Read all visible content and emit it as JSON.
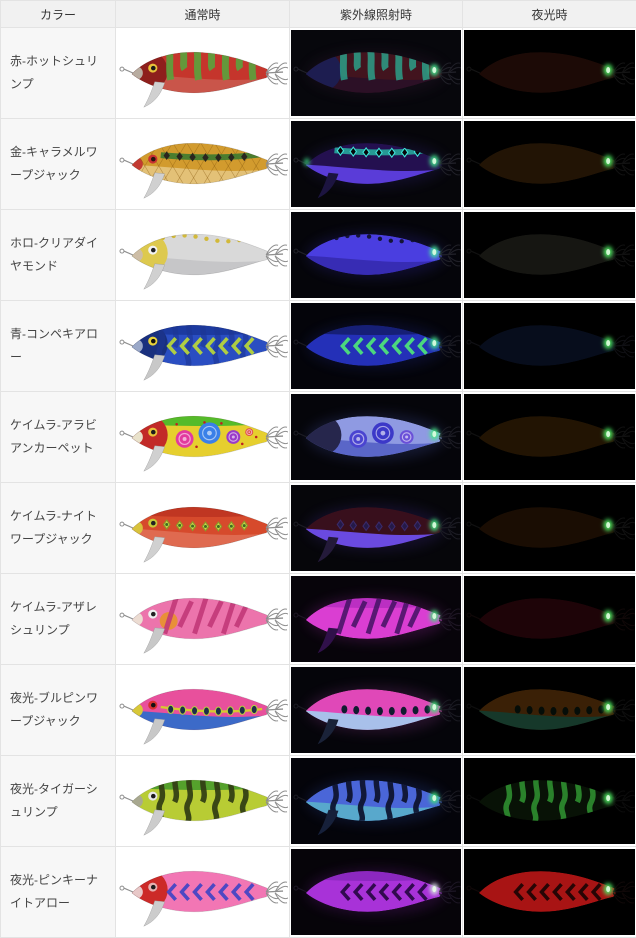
{
  "palette": {
    "header_bg": "#f1f1f1",
    "label_bg": "#f7f7f7",
    "border": "#e3e3e3",
    "photo_bg_dark": "#000000",
    "glow_green": "#4ce25f"
  },
  "table": {
    "headers": [
      {
        "label": "カラー"
      },
      {
        "label": "通常時"
      },
      {
        "label": "紫外線照射時"
      },
      {
        "label": "夜光時"
      }
    ],
    "rows": [
      {
        "label": "赤-ホットシュリンプ",
        "normal": {
          "bg": "#ffffff",
          "body": "#c5352c",
          "belly": "#c9554a",
          "head": "#8e1f1c",
          "noseTip": "#b8aca0",
          "eye": {
            "ring": "#e8c23a",
            "pupil": "#1a1a1a"
          },
          "fin": "#d0d0d0",
          "finStroke": "#9a9a9a",
          "hw": "#8f8f8f",
          "pattern": {
            "type": "stripes",
            "color": "#5f9e3c"
          }
        },
        "uv": {
          "bg": "#07070c",
          "body": "#42141e",
          "belly": "#2c1026",
          "head": "#1d1d50",
          "hw": "#202028",
          "halo": "#402040",
          "pattern": {
            "type": "stripes",
            "color": "#2aa78f",
            "o": 0.8
          },
          "spot": "#3fe08a"
        },
        "night": {
          "bg": "#000000",
          "body": "#1c0a06",
          "hw": "#141414",
          "spot": "#4ce25f"
        }
      },
      {
        "label": "金-キャラメルワープジャック",
        "normal": {
          "bg": "#ffffff",
          "body": "#d29b2e",
          "belly": "#e3c177",
          "noseTip": "#c23a32",
          "eye": {
            "ring": "#c83232",
            "pupil": "#26150e"
          },
          "fin": "#d0d0d0",
          "finStroke": "#9a9a9a",
          "hw": "#8f8f8f",
          "hatch": "#8a5c10",
          "pattern": {
            "type": "diamonds",
            "y": 35,
            "band": "#3c7a30",
            "color": "#2a261e"
          }
        },
        "uv": {
          "bg": "#06060a",
          "body": "#241050",
          "belly": "#5a3cd8",
          "fin": "#1c1440",
          "hw": "#202028",
          "halo": "#3a2a90",
          "pattern": {
            "type": "diamonds",
            "y": 30,
            "band": "#27a79b",
            "color": "#06060a",
            "stroke": "#3fe4da"
          },
          "spot": "#3fe08a",
          "spot2": "#3fe08a"
        },
        "night": {
          "bg": "#000000",
          "body": "#221405",
          "hw": "#121212",
          "spot": "#4ce25f"
        }
      },
      {
        "label": "ホロ-クリアダイヤモンド",
        "normal": {
          "bg": "#ffffff",
          "body": "#d9d9d9",
          "belly": "#c6c6c8",
          "head": "#ddc94e",
          "noseTip": "#cdbda6",
          "eye": {
            "ring": "#f2f2f2",
            "pupil": "#222222"
          },
          "fin": "#d0d0d0",
          "finStroke": "#9a9a9a",
          "hw": "#8f8f8f",
          "pattern": {
            "type": "dots",
            "color": "#d2b93a"
          }
        },
        "uv": {
          "bg": "#05050a",
          "body": "#4a3ee0",
          "belly": "#372cb4",
          "hw": "#202028",
          "halo": "#3a30c0",
          "pattern": {
            "type": "dots",
            "color": "#141438"
          },
          "spot": "#44e6a0"
        },
        "night": {
          "bg": "#000000",
          "body": "#161612",
          "hw": "#111111",
          "spot": "#4ce25f"
        }
      },
      {
        "label": "青-コンペキアロー",
        "normal": {
          "bg": "#ffffff",
          "body": "#2a4ec2",
          "back": "#1c3aa0",
          "head": "#19307e",
          "noseTip": "#9aa8c8",
          "eye": {
            "ring": "#e8d23a",
            "pupil": "#111111"
          },
          "fin": "#c8c8c8",
          "finStroke": "#9a9a9a",
          "hw": "#8f8f8f",
          "pattern2": {
            "type": "tiger",
            "color": "#1c3592",
            "o": 0.6
          },
          "pattern": {
            "type": "chevrons",
            "color": "#b6d43c"
          }
        },
        "uv": {
          "bg": "#04040a",
          "body": "#2430b8",
          "back": "#161f76",
          "hw": "#1a1a22",
          "halo": "#2030a0",
          "pattern": {
            "type": "chevrons",
            "color": "#4ee07a"
          },
          "spot": "#3fe08a"
        },
        "night": {
          "bg": "#000000",
          "body": "#070d1c",
          "hw": "#101014",
          "spot": "#4ce25f"
        }
      },
      {
        "label": "ケイムラ-アラビアンカーペット",
        "normal": {
          "bg": "#ffffff",
          "body": "#e6cf2e",
          "back": "#55bb2a",
          "head": "#c22a28",
          "noseTip": "#e9e2cb",
          "eye": {
            "ring": "#e8c23a",
            "pupil": "#1c1c1c"
          },
          "fin": "#d0d0d0",
          "finStroke": "#9a9a9a",
          "hw": "#8f8f8f",
          "pattern": {
            "type": "circles",
            "items": [
              [
                68,
                46,
                9,
                "#e23a9e"
              ],
              [
                93,
                40,
                11,
                "#3a80e8"
              ],
              [
                117,
                44,
                7,
                "#9a3ac8"
              ],
              [
                133,
                39,
                4,
                "#e04848"
              ]
            ],
            "dots": "#c02020"
          }
        },
        "uv": {
          "bg": "#05050a",
          "body": "#8f9ae2",
          "belly": "#5a66c8",
          "head": "#26264c",
          "hw": "#1c1c24",
          "halo": "#5060c0",
          "pattern": {
            "type": "circles",
            "items": [
              [
                68,
                46,
                9,
                "#4a44d0"
              ],
              [
                93,
                40,
                11,
                "#3c38c8"
              ],
              [
                117,
                44,
                7,
                "#6a50d8"
              ]
            ]
          },
          "spot": "#46e888"
        },
        "night": {
          "bg": "#000000",
          "body": "#221403",
          "hw": "#111111",
          "spot": "#4ce25f"
        }
      },
      {
        "label": "ケイムラ-ナイトワープジャック",
        "normal": {
          "bg": "#ffffff",
          "body": "#d64a2c",
          "back": "#c03622",
          "belly": "#df6a50",
          "noseTip": "#d8c23c",
          "eye": {
            "ring": "#c8c838",
            "pupil": "#222222"
          },
          "fin": "#d0d0d0",
          "finStroke": "#9a9a9a",
          "hw": "#8f8f8f",
          "pattern": {
            "type": "diamonds",
            "y": 40,
            "color": "#ccd44c",
            "stroke": "#8a9a28",
            "color2": "#3c6e22"
          }
        },
        "uv": {
          "bg": "#06060a",
          "body": "#380f1c",
          "belly": "#6a4ae0",
          "fin": "#241a3a",
          "hw": "#1c1c24",
          "halo": "#4a30a0",
          "pattern": {
            "type": "diamonds",
            "y": 40,
            "color": "#241a48",
            "stroke": "#3a2a6a"
          },
          "spot": "#40e07c"
        },
        "night": {
          "bg": "#000000",
          "body": "#1a0d03",
          "hw": "#111111",
          "spot": "#4ce25f"
        }
      },
      {
        "label": "ケイムラ-アザレシュリンプ",
        "normal": {
          "bg": "#ffffff",
          "body": "#ec74ac",
          "cheek": "#e89038",
          "noseTip": "#ecdcd2",
          "eye": {
            "ring": "#f0f0f0",
            "pupil": "#222222"
          },
          "fin": "#c8c8c8",
          "finStroke": "#9a9a9a",
          "hw": "#8f8f8f",
          "pattern": {
            "type": "slashes",
            "color": "#c23878"
          }
        },
        "uv": {
          "bg": "#07040a",
          "body": "#da3ed2",
          "back": "#bb2fc2",
          "fin": "#30104a",
          "hw": "#1e1624",
          "halo": "#b030b8",
          "pattern": {
            "type": "slashes",
            "color": "#4a1468"
          },
          "spot": "#44e07c"
        },
        "night": {
          "bg": "#000000",
          "body": "#1e0408",
          "hw": "#100808",
          "spot": "#4ce25f"
        }
      },
      {
        "label": "夜光-ブルピンワープジャック",
        "normal": {
          "bg": "#ffffff",
          "body": "#e8509c",
          "belly": "#3c6ac8",
          "noseTip": "#d8c838",
          "eye": {
            "ring": "#d83030",
            "pupil": "#111111"
          },
          "fin": "#c8c8c8",
          "finStroke": "#9a9a9a",
          "hw": "#8f8f8f",
          "pattern": {
            "type": "ovals",
            "line": "#d8c830",
            "color": "#1e2c4a",
            "ring": "#b8d838"
          }
        },
        "uv": {
          "bg": "#05050a",
          "body": "#e048b8",
          "belly": "#a8c0ea",
          "fin": "#1a2238",
          "hw": "#1a1a22",
          "halo": "#a040a0",
          "pattern": {
            "type": "ovals",
            "color": "#101c30"
          },
          "spot": "#42e67c"
        },
        "night": {
          "bg": "#000000",
          "body": "#3a2006",
          "belly": "#16382a",
          "hw": "#0e0e0e",
          "pattern": {
            "type": "ovals",
            "color": "#050d08"
          },
          "spot": "#4ce25f"
        }
      },
      {
        "label": "夜光-タイガーシュリンプ",
        "normal": {
          "bg": "#ffffff",
          "body": "#b8cc34",
          "back": "#55a12c",
          "noseTip": "#a8a890",
          "eye": {
            "ring": "#e8e8e8",
            "pupil": "#1a1a1a"
          },
          "fin": "#cccccc",
          "finStroke": "#9a9a9a",
          "hw": "#8f8f8f",
          "pattern": {
            "type": "tiger",
            "color": "#333f14"
          }
        },
        "uv": {
          "bg": "#04040a",
          "body": "#4a66d8",
          "belly": "#58a8cc",
          "fin": "#16203a",
          "hw": "#1a1a22",
          "halo": "#3050b0",
          "pattern": {
            "type": "tiger",
            "color": "#0e1430"
          },
          "spot": "#40e07c"
        },
        "night": {
          "bg": "#000000",
          "body": "#081206",
          "hw": "#0c0c0c",
          "pattern": {
            "type": "tiger",
            "color": "#2f8f30",
            "o": 0.9
          },
          "spot": "#4ce25f"
        }
      },
      {
        "label": "夜光-ピンキーナイトアロー",
        "normal": {
          "bg": "#ffffff",
          "body": "#f276b4",
          "head": "#cc2a28",
          "noseTip": "#e8c8c8",
          "eye": {
            "ring": "#e8b0b0",
            "pupil": "#1c1c1c"
          },
          "fin": "#cccccc",
          "finStroke": "#9a9a9a",
          "hw": "#8f8f8f",
          "pattern": {
            "type": "chevrons",
            "color": "#4446c4"
          }
        },
        "uv": {
          "bg": "#060409",
          "body": "#a832d8",
          "back": "#8c28c0",
          "hw": "#1c1624",
          "halo": "#8a20b0",
          "pattern": {
            "type": "chevrons",
            "color": "#2a0848"
          },
          "spot": "#cfd4dc"
        },
        "night": {
          "bg": "#000000",
          "body": "#a81414",
          "hw": "#100808",
          "pattern": {
            "type": "chevrons",
            "color": "#200404"
          },
          "spot": "#4ce25f"
        }
      }
    ]
  }
}
